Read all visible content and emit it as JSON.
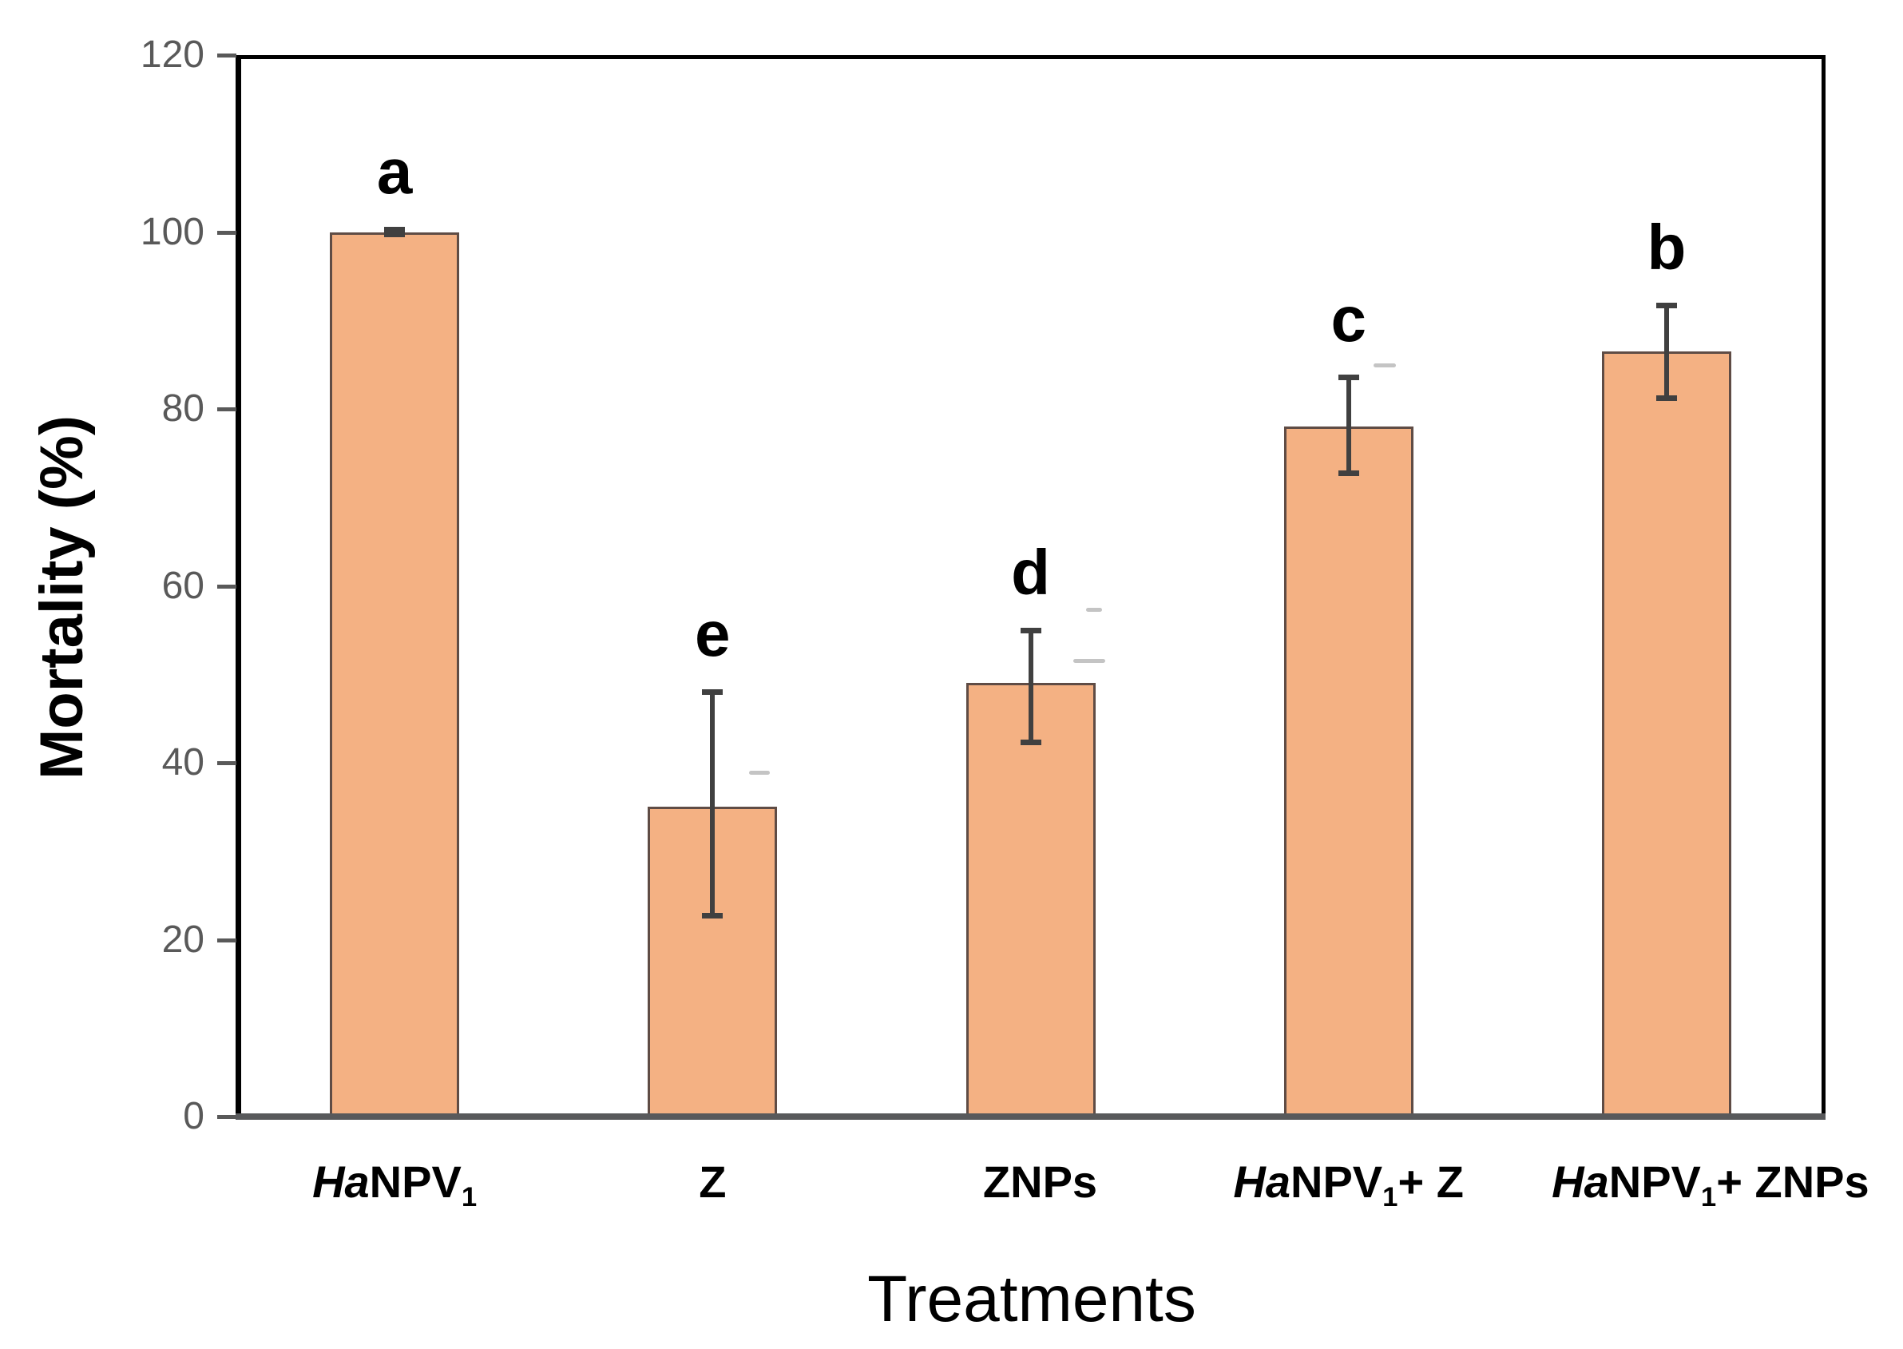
{
  "chart_data": {
    "type": "bar",
    "title": "",
    "xlabel": "Treatments",
    "ylabel": "Mortality (%)",
    "ylim": [
      0,
      120
    ],
    "yticks": [
      0,
      20,
      40,
      60,
      80,
      100,
      120
    ],
    "grid": false,
    "legend_position": "none",
    "categories": [
      "HaNPV1",
      "Z",
      "ZNPs",
      "HaNPV1+ Z",
      "HaNPV1+ ZNPs"
    ],
    "series": [
      {
        "name": "Mortality (%)",
        "values": [
          100,
          35,
          49,
          78,
          86.5
        ]
      }
    ],
    "error_bars": {
      "low": [
        99.7,
        22.7,
        42.3,
        72.7,
        81.2
      ],
      "high": [
        100.3,
        48.0,
        55.0,
        83.6,
        91.7
      ]
    },
    "significance_letters": [
      "a",
      "e",
      "d",
      "c",
      "b"
    ],
    "category_label_parts": [
      [
        {
          "text": "Ha",
          "italic": true
        },
        {
          "text": "NPV"
        },
        {
          "text": "1",
          "sub": true
        }
      ],
      [
        {
          "text": "Z"
        }
      ],
      [
        {
          "text": "ZNPs"
        }
      ],
      [
        {
          "text": "Ha",
          "italic": true
        },
        {
          "text": "NPV"
        },
        {
          "text": "1",
          "sub": true
        },
        {
          "text": "+ Z"
        }
      ],
      [
        {
          "text": "Ha",
          "italic": true
        },
        {
          "text": "NPV"
        },
        {
          "text": "1",
          "sub": true
        },
        {
          "text": "+ ZNPs"
        }
      ]
    ],
    "colors": {
      "bar_fill": "#F4B183",
      "bar_border": "#5F4C45",
      "error_bar": "#404040",
      "tick_label": "#595959",
      "axis_box": "#000000",
      "baseline": "#58595B"
    }
  }
}
